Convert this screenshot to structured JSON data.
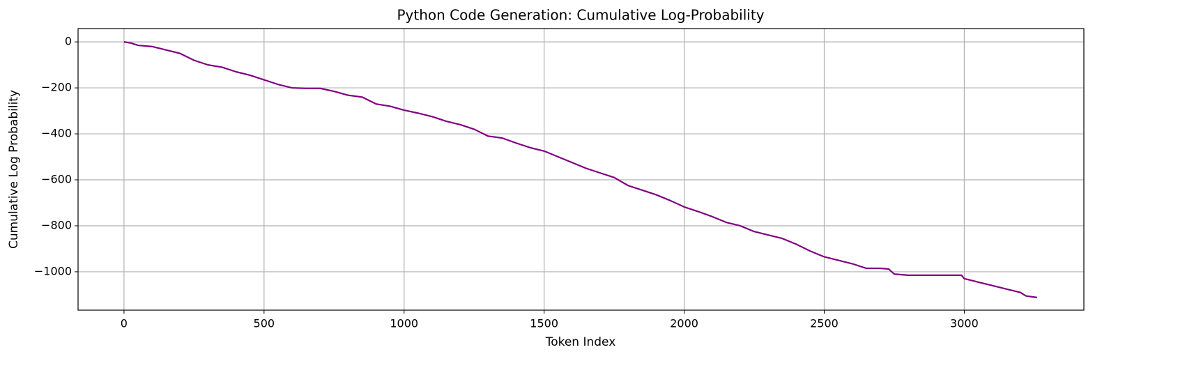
{
  "chart_data": {
    "type": "line",
    "title": "Python Code Generation: Cumulative Log-Probability",
    "x_label": "Token Index",
    "y_label": "Cumulative Log Probability",
    "xlim": [
      -164,
      3427
    ],
    "ylim": [
      -1167,
      58
    ],
    "xticks": [
      0,
      500,
      1000,
      1500,
      2000,
      2500,
      3000
    ],
    "yticks": [
      {
        "value": -1000,
        "label": "−1000"
      },
      {
        "value": -800,
        "label": "−800"
      },
      {
        "value": -600,
        "label": "−600"
      },
      {
        "value": -400,
        "label": "−400"
      },
      {
        "value": -200,
        "label": "−200"
      },
      0
    ],
    "grid": true,
    "x": [
      0,
      25,
      50,
      100,
      150,
      200,
      250,
      300,
      350,
      400,
      450,
      500,
      550,
      600,
      650,
      700,
      750,
      800,
      850,
      900,
      950,
      1000,
      1050,
      1100,
      1150,
      1200,
      1250,
      1300,
      1350,
      1400,
      1450,
      1500,
      1550,
      1600,
      1650,
      1700,
      1750,
      1800,
      1850,
      1900,
      1950,
      2000,
      2050,
      2100,
      2150,
      2200,
      2250,
      2300,
      2350,
      2400,
      2450,
      2500,
      2550,
      2600,
      2650,
      2700,
      2730,
      2750,
      2800,
      2850,
      2900,
      2950,
      2990,
      3000,
      3050,
      3100,
      3150,
      3200,
      3220,
      3260
    ],
    "series": [
      {
        "name": "Cumulative Log Probability",
        "color": "#800080",
        "values": [
          0,
          -5,
          -15,
          -20,
          -35,
          -50,
          -80,
          -100,
          -110,
          -130,
          -145,
          -165,
          -185,
          -200,
          -202,
          -202,
          -215,
          -232,
          -240,
          -270,
          -280,
          -297,
          -310,
          -325,
          -345,
          -360,
          -380,
          -410,
          -418,
          -440,
          -460,
          -475,
          -500,
          -525,
          -550,
          -570,
          -590,
          -625,
          -645,
          -665,
          -690,
          -718,
          -738,
          -760,
          -785,
          -800,
          -825,
          -840,
          -855,
          -880,
          -910,
          -935,
          -950,
          -965,
          -985,
          -985,
          -988,
          -1010,
          -1015,
          -1015,
          -1015,
          -1015,
          -1015,
          -1030,
          -1045,
          -1060,
          -1075,
          -1090,
          -1105,
          -1112
        ]
      }
    ]
  }
}
